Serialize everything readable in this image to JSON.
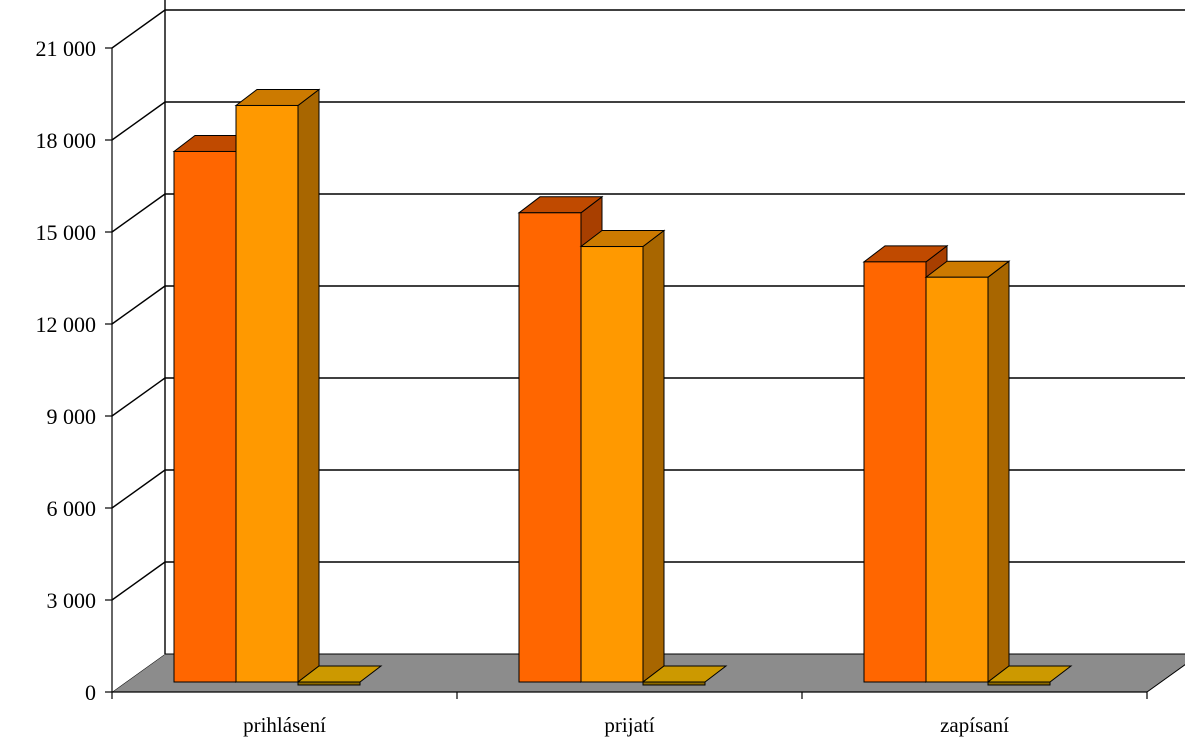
{
  "chart_data": {
    "type": "bar",
    "categories": [
      "prihlásení",
      "prijatí",
      "zapísaní"
    ],
    "series": [
      {
        "values": [
          17300,
          15300,
          13700
        ]
      },
      {
        "values": [
          18800,
          14200,
          13200
        ]
      },
      {
        "values": [
          0,
          0,
          0
        ]
      }
    ],
    "ylim": [
      0,
      21000
    ],
    "yticks": [
      0,
      3000,
      6000,
      9000,
      12000,
      15000,
      18000,
      21000
    ],
    "ytick_labels": [
      "0",
      "3 000",
      "6 000",
      "9 000",
      "12 000",
      "15 000",
      "18 000",
      "21 000"
    ],
    "grid": true,
    "legend": "none",
    "colors": {
      "series_front": [
        "#FF6600",
        "#FF9900",
        "#CC9900"
      ],
      "series_top": [
        "#C04A00",
        "#CC7A00",
        "#E0B000"
      ],
      "series_side": [
        "#A83F00",
        "#A86600",
        "#8C6A00"
      ],
      "floor": "#8C8C8C",
      "wall": "#FFFFFF",
      "gridline": "#000000"
    }
  }
}
